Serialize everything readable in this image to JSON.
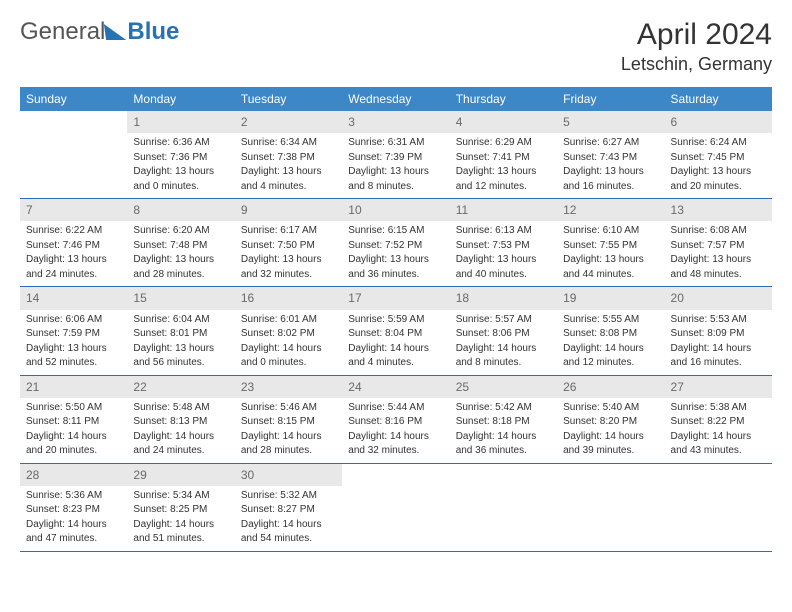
{
  "brand": {
    "part1": "General",
    "part2": "Blue"
  },
  "title": "April 2024",
  "location": "Letschin, Germany",
  "colors": {
    "header_bg": "#3b87c8",
    "header_fg": "#ffffff",
    "daynum_bg": "#e8e8e8",
    "daynum_fg": "#6a6a6a",
    "rule": "#2772b5",
    "text": "#333333",
    "background": "#ffffff"
  },
  "weekdays": [
    "Sunday",
    "Monday",
    "Tuesday",
    "Wednesday",
    "Thursday",
    "Friday",
    "Saturday"
  ],
  "cells": [
    {
      "day": "",
      "sunrise": "",
      "sunset": "",
      "dl1": "",
      "dl2": ""
    },
    {
      "day": "1",
      "sunrise": "Sunrise: 6:36 AM",
      "sunset": "Sunset: 7:36 PM",
      "dl1": "Daylight: 13 hours",
      "dl2": "and 0 minutes."
    },
    {
      "day": "2",
      "sunrise": "Sunrise: 6:34 AM",
      "sunset": "Sunset: 7:38 PM",
      "dl1": "Daylight: 13 hours",
      "dl2": "and 4 minutes."
    },
    {
      "day": "3",
      "sunrise": "Sunrise: 6:31 AM",
      "sunset": "Sunset: 7:39 PM",
      "dl1": "Daylight: 13 hours",
      "dl2": "and 8 minutes."
    },
    {
      "day": "4",
      "sunrise": "Sunrise: 6:29 AM",
      "sunset": "Sunset: 7:41 PM",
      "dl1": "Daylight: 13 hours",
      "dl2": "and 12 minutes."
    },
    {
      "day": "5",
      "sunrise": "Sunrise: 6:27 AM",
      "sunset": "Sunset: 7:43 PM",
      "dl1": "Daylight: 13 hours",
      "dl2": "and 16 minutes."
    },
    {
      "day": "6",
      "sunrise": "Sunrise: 6:24 AM",
      "sunset": "Sunset: 7:45 PM",
      "dl1": "Daylight: 13 hours",
      "dl2": "and 20 minutes."
    },
    {
      "day": "7",
      "sunrise": "Sunrise: 6:22 AM",
      "sunset": "Sunset: 7:46 PM",
      "dl1": "Daylight: 13 hours",
      "dl2": "and 24 minutes."
    },
    {
      "day": "8",
      "sunrise": "Sunrise: 6:20 AM",
      "sunset": "Sunset: 7:48 PM",
      "dl1": "Daylight: 13 hours",
      "dl2": "and 28 minutes."
    },
    {
      "day": "9",
      "sunrise": "Sunrise: 6:17 AM",
      "sunset": "Sunset: 7:50 PM",
      "dl1": "Daylight: 13 hours",
      "dl2": "and 32 minutes."
    },
    {
      "day": "10",
      "sunrise": "Sunrise: 6:15 AM",
      "sunset": "Sunset: 7:52 PM",
      "dl1": "Daylight: 13 hours",
      "dl2": "and 36 minutes."
    },
    {
      "day": "11",
      "sunrise": "Sunrise: 6:13 AM",
      "sunset": "Sunset: 7:53 PM",
      "dl1": "Daylight: 13 hours",
      "dl2": "and 40 minutes."
    },
    {
      "day": "12",
      "sunrise": "Sunrise: 6:10 AM",
      "sunset": "Sunset: 7:55 PM",
      "dl1": "Daylight: 13 hours",
      "dl2": "and 44 minutes."
    },
    {
      "day": "13",
      "sunrise": "Sunrise: 6:08 AM",
      "sunset": "Sunset: 7:57 PM",
      "dl1": "Daylight: 13 hours",
      "dl2": "and 48 minutes."
    },
    {
      "day": "14",
      "sunrise": "Sunrise: 6:06 AM",
      "sunset": "Sunset: 7:59 PM",
      "dl1": "Daylight: 13 hours",
      "dl2": "and 52 minutes."
    },
    {
      "day": "15",
      "sunrise": "Sunrise: 6:04 AM",
      "sunset": "Sunset: 8:01 PM",
      "dl1": "Daylight: 13 hours",
      "dl2": "and 56 minutes."
    },
    {
      "day": "16",
      "sunrise": "Sunrise: 6:01 AM",
      "sunset": "Sunset: 8:02 PM",
      "dl1": "Daylight: 14 hours",
      "dl2": "and 0 minutes."
    },
    {
      "day": "17",
      "sunrise": "Sunrise: 5:59 AM",
      "sunset": "Sunset: 8:04 PM",
      "dl1": "Daylight: 14 hours",
      "dl2": "and 4 minutes."
    },
    {
      "day": "18",
      "sunrise": "Sunrise: 5:57 AM",
      "sunset": "Sunset: 8:06 PM",
      "dl1": "Daylight: 14 hours",
      "dl2": "and 8 minutes."
    },
    {
      "day": "19",
      "sunrise": "Sunrise: 5:55 AM",
      "sunset": "Sunset: 8:08 PM",
      "dl1": "Daylight: 14 hours",
      "dl2": "and 12 minutes."
    },
    {
      "day": "20",
      "sunrise": "Sunrise: 5:53 AM",
      "sunset": "Sunset: 8:09 PM",
      "dl1": "Daylight: 14 hours",
      "dl2": "and 16 minutes."
    },
    {
      "day": "21",
      "sunrise": "Sunrise: 5:50 AM",
      "sunset": "Sunset: 8:11 PM",
      "dl1": "Daylight: 14 hours",
      "dl2": "and 20 minutes."
    },
    {
      "day": "22",
      "sunrise": "Sunrise: 5:48 AM",
      "sunset": "Sunset: 8:13 PM",
      "dl1": "Daylight: 14 hours",
      "dl2": "and 24 minutes."
    },
    {
      "day": "23",
      "sunrise": "Sunrise: 5:46 AM",
      "sunset": "Sunset: 8:15 PM",
      "dl1": "Daylight: 14 hours",
      "dl2": "and 28 minutes."
    },
    {
      "day": "24",
      "sunrise": "Sunrise: 5:44 AM",
      "sunset": "Sunset: 8:16 PM",
      "dl1": "Daylight: 14 hours",
      "dl2": "and 32 minutes."
    },
    {
      "day": "25",
      "sunrise": "Sunrise: 5:42 AM",
      "sunset": "Sunset: 8:18 PM",
      "dl1": "Daylight: 14 hours",
      "dl2": "and 36 minutes."
    },
    {
      "day": "26",
      "sunrise": "Sunrise: 5:40 AM",
      "sunset": "Sunset: 8:20 PM",
      "dl1": "Daylight: 14 hours",
      "dl2": "and 39 minutes."
    },
    {
      "day": "27",
      "sunrise": "Sunrise: 5:38 AM",
      "sunset": "Sunset: 8:22 PM",
      "dl1": "Daylight: 14 hours",
      "dl2": "and 43 minutes."
    },
    {
      "day": "28",
      "sunrise": "Sunrise: 5:36 AM",
      "sunset": "Sunset: 8:23 PM",
      "dl1": "Daylight: 14 hours",
      "dl2": "and 47 minutes."
    },
    {
      "day": "29",
      "sunrise": "Sunrise: 5:34 AM",
      "sunset": "Sunset: 8:25 PM",
      "dl1": "Daylight: 14 hours",
      "dl2": "and 51 minutes."
    },
    {
      "day": "30",
      "sunrise": "Sunrise: 5:32 AM",
      "sunset": "Sunset: 8:27 PM",
      "dl1": "Daylight: 14 hours",
      "dl2": "and 54 minutes."
    },
    {
      "day": "",
      "sunrise": "",
      "sunset": "",
      "dl1": "",
      "dl2": ""
    },
    {
      "day": "",
      "sunrise": "",
      "sunset": "",
      "dl1": "",
      "dl2": ""
    },
    {
      "day": "",
      "sunrise": "",
      "sunset": "",
      "dl1": "",
      "dl2": ""
    },
    {
      "day": "",
      "sunrise": "",
      "sunset": "",
      "dl1": "",
      "dl2": ""
    }
  ]
}
